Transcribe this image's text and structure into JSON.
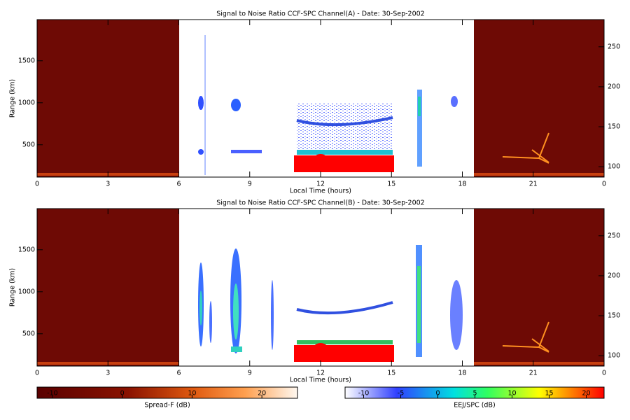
{
  "chart_data": [
    {
      "type": "heatmap",
      "title": "Signal to Noise Ratio CCF-SPC Channel(A) - Date: 30-Sep-2002",
      "xlabel": "Local Time (hours)",
      "ylabel": "Range (km)",
      "xlim": [
        0,
        24
      ],
      "xticks": [
        0,
        3,
        6,
        9,
        12,
        15,
        18,
        21,
        {
          "value": 24,
          "label": "0"
        }
      ],
      "ylim": [
        115,
        1990
      ],
      "yticks": [
        500,
        1000,
        1500
      ],
      "y2lim": [
        87,
        284
      ],
      "y2ticks": [
        100,
        150,
        200,
        250
      ]
    },
    {
      "type": "heatmap",
      "title": "Signal to Noise Ratio CCF-SPC Channel(B) - Date: 30-Sep-2002",
      "xlabel": "Local Time (hours)",
      "ylabel": "Range (km)",
      "xlim": [
        0,
        24
      ],
      "xticks": [
        0,
        3,
        6,
        9,
        12,
        15,
        18,
        21,
        {
          "value": 24,
          "label": "0"
        }
      ],
      "ylim": [
        115,
        1990
      ],
      "yticks": [
        500,
        1000,
        1500
      ],
      "y2lim": [
        87,
        284
      ],
      "y2ticks": [
        100,
        150,
        200,
        250
      ]
    },
    {
      "type": "colorbar",
      "xlabel": "Spread-F (dB)",
      "xlim": [
        -12.2,
        25.1
      ],
      "xticks": [
        -10,
        0,
        10,
        20
      ]
    },
    {
      "type": "colorbar",
      "xlabel": "EEJ/SPC (dB)",
      "xlim": [
        -12.5,
        22.4
      ],
      "xticks": [
        -10,
        -5,
        0,
        5,
        10,
        15,
        20
      ]
    }
  ]
}
